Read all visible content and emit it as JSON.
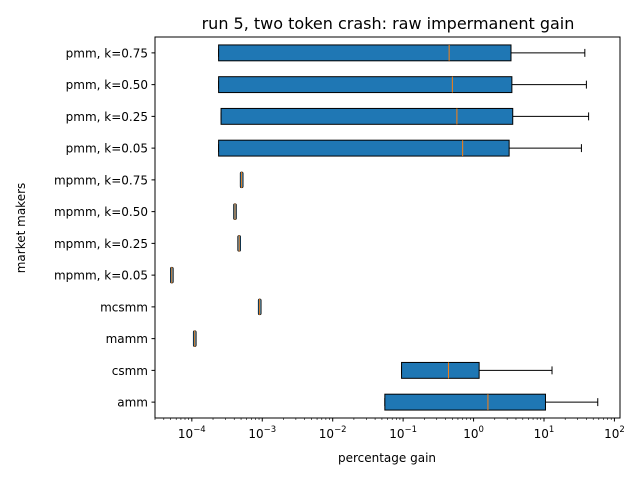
{
  "chart_data": {
    "type": "boxplot",
    "title": "run 5, two token crash: raw impermanent gain",
    "xlabel": "percentage gain",
    "ylabel": "market makers",
    "xscale": "log",
    "xlim": [
      3e-05,
      120
    ],
    "x_ticks": [
      {
        "base": "10",
        "exp": "−4",
        "value": 0.0001
      },
      {
        "base": "10",
        "exp": "−3",
        "value": 0.001
      },
      {
        "base": "10",
        "exp": "−2",
        "value": 0.01
      },
      {
        "base": "10",
        "exp": "−1",
        "value": 0.1
      },
      {
        "base": "10",
        "exp": "0",
        "value": 1
      },
      {
        "base": "10",
        "exp": "1",
        "value": 10
      },
      {
        "base": "10",
        "exp": "2",
        "value": 100
      }
    ],
    "grid": false,
    "box_color": "#1f77b4",
    "median_color": "#ff7f0e",
    "categories": [
      "pmm, k=0.75",
      "pmm, k=0.50",
      "pmm, k=0.25",
      "pmm, k=0.05",
      "mpmm, k=0.75",
      "mpmm, k=0.50",
      "mpmm, k=0.25",
      "mpmm, k=0.05",
      "mcsmm",
      "mamm",
      "csmm",
      "amm"
    ],
    "boxes": [
      {
        "whisker_low": 0.00024,
        "q1": 0.00024,
        "median": 0.45,
        "q3": 3.4,
        "whisker_high": 38
      },
      {
        "whisker_low": 0.00024,
        "q1": 0.00024,
        "median": 0.5,
        "q3": 3.5,
        "whisker_high": 40
      },
      {
        "whisker_low": 0.00026,
        "q1": 0.00026,
        "median": 0.58,
        "q3": 3.6,
        "whisker_high": 43
      },
      {
        "whisker_low": 0.00024,
        "q1": 0.00024,
        "median": 0.7,
        "q3": 3.2,
        "whisker_high": 34
      },
      {
        "whisker_low": 0.00051,
        "q1": 0.00051,
        "median": 0.00051,
        "q3": 0.00051,
        "whisker_high": 0.00051
      },
      {
        "whisker_low": 0.00041,
        "q1": 0.00041,
        "median": 0.00041,
        "q3": 0.00041,
        "whisker_high": 0.00041
      },
      {
        "whisker_low": 0.00047,
        "q1": 0.00047,
        "median": 0.00047,
        "q3": 0.00047,
        "whisker_high": 0.00047
      },
      {
        "whisker_low": 5.2e-05,
        "q1": 5.2e-05,
        "median": 5.2e-05,
        "q3": 5.2e-05,
        "whisker_high": 5.2e-05
      },
      {
        "whisker_low": 0.00092,
        "q1": 0.00092,
        "median": 0.00092,
        "q3": 0.00092,
        "whisker_high": 0.00092
      },
      {
        "whisker_low": 0.00011,
        "q1": 0.00011,
        "median": 0.00011,
        "q3": 0.00011,
        "whisker_high": 0.00011
      },
      {
        "whisker_low": 0.095,
        "q1": 0.095,
        "median": 0.44,
        "q3": 1.2,
        "whisker_high": 13
      },
      {
        "whisker_low": 0.055,
        "q1": 0.055,
        "median": 1.6,
        "q3": 10.5,
        "whisker_high": 58
      }
    ]
  }
}
